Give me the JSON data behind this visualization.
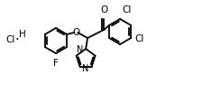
{
  "bg": "#ffffff",
  "bc": "#000000",
  "lw": 1.3,
  "fs": 7.5,
  "fw": 2.24,
  "fh": 0.94,
  "dpi": 100,
  "xlim": [
    0,
    224
  ],
  "ylim": [
    0,
    94
  ]
}
